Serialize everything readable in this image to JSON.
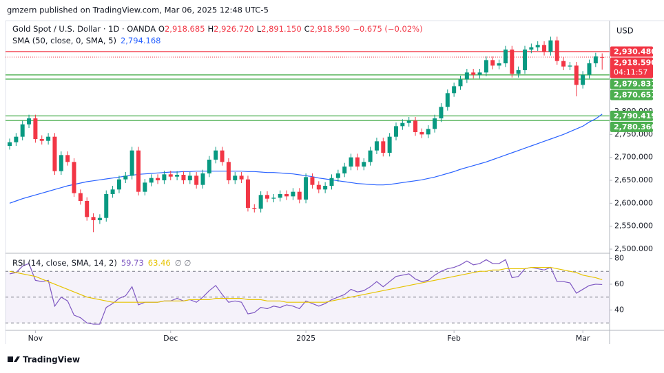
{
  "header": {
    "published": "gmzern published on TradingView.com, Mar 06, 2025 12:48 UTC-5",
    "symbol": "Gold Spot / U.S. Dollar · 1D · OANDA",
    "ohlc": [
      {
        "label": "O",
        "value": "2,918.685"
      },
      {
        "label": "H",
        "value": "2,926.720"
      },
      {
        "label": "L",
        "value": "2,891.150"
      },
      {
        "label": "C",
        "value": "2,918.590"
      }
    ],
    "change": "−0.675 (−0.02%)",
    "brand": "TradingView"
  },
  "chart_data": {
    "type": "candlestick",
    "currency": "USD",
    "up_color": "#089981",
    "down_color": "#f23645",
    "categories": [
      null,
      null,
      null,
      null,
      "Nov",
      null,
      null,
      null,
      null,
      null,
      null,
      null,
      null,
      null,
      null,
      null,
      null,
      null,
      null,
      null,
      null,
      null,
      null,
      null,
      null,
      "Dec",
      null,
      null,
      null,
      null,
      null,
      null,
      null,
      null,
      null,
      null,
      null,
      null,
      null,
      null,
      null,
      null,
      null,
      null,
      null,
      null,
      "2025",
      null,
      null,
      null,
      null,
      null,
      null,
      null,
      null,
      null,
      null,
      null,
      null,
      null,
      null,
      null,
      null,
      null,
      null,
      null,
      null,
      null,
      null,
      "Feb",
      null,
      null,
      null,
      null,
      null,
      null,
      null,
      null,
      null,
      null,
      null,
      null,
      null,
      null,
      null,
      null,
      null,
      null,
      null,
      "Mar",
      null,
      null,
      null
    ],
    "open": [
      2725,
      2733,
      2745,
      2772,
      2785,
      2740,
      2736,
      2745,
      2670,
      2705,
      2690,
      2622,
      2605,
      2570,
      2563,
      2568,
      2620,
      2630,
      2652,
      2660,
      2715,
      2625,
      2645,
      2655,
      2650,
      2663,
      2658,
      2662,
      2650,
      2660,
      2640,
      2665,
      2695,
      2715,
      2690,
      2650,
      2660,
      2652,
      2590,
      2588,
      2618,
      2610,
      2612,
      2620,
      2615,
      2625,
      2608,
      2657,
      2640,
      2630,
      2638,
      2655,
      2665,
      2680,
      2700,
      2680,
      2690,
      2715,
      2735,
      2710,
      2745,
      2768,
      2775,
      2780,
      2755,
      2750,
      2762,
      2785,
      2810,
      2840,
      2855,
      2870,
      2885,
      2880,
      2885,
      2912,
      2900,
      2905,
      2935,
      2882,
      2890,
      2935,
      2940,
      2945,
      2930,
      2955,
      2910,
      2898,
      2900,
      2858,
      2880,
      2905,
      2918.685
    ],
    "high": [
      2741,
      2753,
      2780,
      2793,
      2793,
      2748,
      2753,
      2753,
      2713,
      2713,
      2698,
      2630,
      2613,
      2578,
      2576,
      2628,
      2638,
      2660,
      2668,
      2723,
      2723,
      2653,
      2663,
      2663,
      2671,
      2671,
      2670,
      2670,
      2668,
      2668,
      2673,
      2703,
      2723,
      2723,
      2698,
      2668,
      2668,
      2660,
      2598,
      2626,
      2626,
      2620,
      2628,
      2628,
      2633,
      2633,
      2665,
      2665,
      2648,
      2646,
      2663,
      2673,
      2688,
      2708,
      2708,
      2698,
      2723,
      2743,
      2743,
      2753,
      2776,
      2783,
      2788,
      2788,
      2763,
      2770,
      2793,
      2818,
      2848,
      2863,
      2878,
      2893,
      2893,
      2893,
      2920,
      2920,
      2913,
      2943,
      2943,
      2898,
      2943,
      2948,
      2953,
      2953,
      2963,
      2963,
      2918,
      2908,
      2908,
      2888,
      2913,
      2928,
      2926.72
    ],
    "low": [
      2717,
      2725,
      2737,
      2764,
      2732,
      2728,
      2728,
      2662,
      2662,
      2682,
      2614,
      2597,
      2562,
      2537,
      2555,
      2560,
      2612,
      2622,
      2644,
      2652,
      2617,
      2617,
      2637,
      2642,
      2642,
      2650,
      2650,
      2642,
      2642,
      2632,
      2632,
      2657,
      2687,
      2682,
      2642,
      2642,
      2644,
      2582,
      2580,
      2580,
      2602,
      2602,
      2604,
      2607,
      2607,
      2600,
      2600,
      2632,
      2622,
      2622,
      2630,
      2647,
      2657,
      2672,
      2672,
      2672,
      2682,
      2707,
      2702,
      2702,
      2737,
      2760,
      2767,
      2747,
      2742,
      2742,
      2754,
      2777,
      2802,
      2832,
      2847,
      2862,
      2872,
      2872,
      2877,
      2892,
      2892,
      2897,
      2874,
      2874,
      2882,
      2927,
      2932,
      2922,
      2922,
      2902,
      2890,
      2890,
      2833,
      2850,
      2872,
      2897,
      2891.15
    ],
    "close": [
      2733,
      2745,
      2772,
      2785,
      2740,
      2736,
      2745,
      2670,
      2705,
      2690,
      2622,
      2605,
      2570,
      2563,
      2568,
      2620,
      2630,
      2652,
      2660,
      2715,
      2625,
      2645,
      2655,
      2650,
      2663,
      2658,
      2662,
      2650,
      2660,
      2640,
      2665,
      2695,
      2715,
      2690,
      2650,
      2660,
      2652,
      2590,
      2588,
      2618,
      2610,
      2612,
      2620,
      2615,
      2625,
      2608,
      2657,
      2640,
      2630,
      2638,
      2655,
      2665,
      2680,
      2700,
      2680,
      2690,
      2715,
      2735,
      2710,
      2745,
      2768,
      2775,
      2780,
      2755,
      2750,
      2762,
      2785,
      2810,
      2840,
      2855,
      2870,
      2885,
      2880,
      2885,
      2912,
      2900,
      2905,
      2935,
      2882,
      2890,
      2935,
      2940,
      2945,
      2930,
      2955,
      2910,
      2898,
      2900,
      2858,
      2880,
      2905,
      2920,
      2918.59
    ],
    "ylim": [
      2491,
      2998
    ],
    "yticks": [
      {
        "value": 2500,
        "label": "2,500.000"
      },
      {
        "value": 2550,
        "label": "2,550.000"
      },
      {
        "value": 2600,
        "label": "2,600.000"
      },
      {
        "value": 2650,
        "label": "2,650.000"
      },
      {
        "value": 2700,
        "label": "2,700.000"
      },
      {
        "value": 2750,
        "label": "2,750.000"
      },
      {
        "value": 2800,
        "label": "2,800.000"
      }
    ],
    "sma": {
      "name": "SMA (50, close, 0, SMA, 5)",
      "color": "#2962ff",
      "value_label": "2,794.168",
      "values": [
        2600,
        2605,
        2610,
        2614,
        2618,
        2622,
        2626,
        2630,
        2634,
        2638,
        2641,
        2644,
        2647,
        2649,
        2651,
        2653,
        2655,
        2657,
        2659,
        2661,
        2663,
        2664,
        2665,
        2666,
        2667,
        2668,
        2668,
        2669,
        2669,
        2670,
        2670,
        2670,
        2670,
        2670,
        2670,
        2670,
        2670,
        2669,
        2669,
        2668,
        2667,
        2667,
        2666,
        2665,
        2664,
        2662,
        2660,
        2658,
        2655,
        2653,
        2651,
        2649,
        2647,
        2645,
        2643,
        2642,
        2641,
        2640,
        2640,
        2641,
        2643,
        2645,
        2647,
        2649,
        2651,
        2654,
        2657,
        2661,
        2665,
        2669,
        2674,
        2678,
        2682,
        2686,
        2690,
        2695,
        2700,
        2705,
        2710,
        2715,
        2720,
        2725,
        2730,
        2735,
        2740,
        2745,
        2750,
        2756,
        2762,
        2768,
        2777,
        2784,
        2794.168
      ]
    },
    "levels": [
      {
        "value": 2930.48,
        "label": "2,930.480",
        "color": "#f23645",
        "style": "solid"
      },
      {
        "value": 2918.59,
        "label": "2,918.590",
        "color": "#f23645",
        "style": "dotted",
        "countdown": "04:11:57"
      },
      {
        "value": 2879.831,
        "label": "2,879.831",
        "color": "#4caf50",
        "style": "solid"
      },
      {
        "value": 2870.651,
        "label": "2,870.651",
        "color": "#4caf50",
        "style": "solid"
      },
      {
        "value": 2790.419,
        "label": "2,790.419",
        "color": "#4caf50",
        "style": "solid"
      },
      {
        "value": 2780.36,
        "label": "2,780.360",
        "color": "#4caf50",
        "style": "solid"
      }
    ],
    "rsi": {
      "type": "line",
      "name": "RSI (14, close, SMA, 14, 2)",
      "extra": "∅ ∅",
      "ylim": [
        25.3,
        82.9
      ],
      "yticks": [
        80,
        60,
        40
      ],
      "bands": [
        70,
        50,
        30
      ],
      "band_color": "#7e57c2",
      "series": [
        {
          "color": "#7e57c2",
          "value_label": "59.73",
          "values": [
            68,
            69,
            74,
            76,
            63,
            62,
            63,
            43,
            50,
            47,
            36,
            34,
            30,
            29,
            29,
            42,
            45,
            49,
            51,
            58,
            44,
            46,
            46,
            46,
            47,
            47,
            49,
            47,
            48,
            46,
            50,
            55,
            59,
            52,
            46,
            47,
            46,
            37,
            38,
            42,
            41,
            43,
            42,
            44,
            43,
            41,
            47,
            45,
            43,
            45,
            48,
            50,
            52,
            56,
            54,
            55,
            58,
            62,
            58,
            62,
            66,
            67,
            68,
            64,
            62,
            63,
            67,
            70,
            72,
            73,
            75,
            78,
            75,
            76,
            79,
            76,
            76,
            79,
            65,
            66,
            72,
            73,
            72,
            71,
            73,
            62,
            62,
            61,
            53,
            56,
            59,
            60,
            59.73
          ]
        },
        {
          "color": "#e6c300",
          "value_label": "63.46",
          "values": [
            70,
            69,
            68,
            67,
            66,
            64,
            62,
            60,
            58,
            56,
            54,
            52,
            50,
            49,
            48,
            47,
            46,
            46,
            46,
            46,
            46,
            46,
            46,
            46,
            47,
            47,
            47,
            47,
            48,
            48,
            48,
            48,
            49,
            49,
            49,
            49,
            49,
            48,
            48,
            48,
            47,
            47,
            47,
            46,
            46,
            46,
            46,
            46,
            46,
            46,
            47,
            48,
            49,
            50,
            51,
            52,
            53,
            54,
            55,
            56,
            57,
            58,
            59,
            60,
            61,
            62,
            63,
            64,
            65,
            66,
            67,
            68,
            69,
            70,
            70,
            71,
            71,
            72,
            72,
            72,
            72,
            73,
            73,
            73,
            73,
            72,
            71,
            70,
            69,
            67,
            66,
            65,
            63.46
          ]
        }
      ]
    }
  }
}
